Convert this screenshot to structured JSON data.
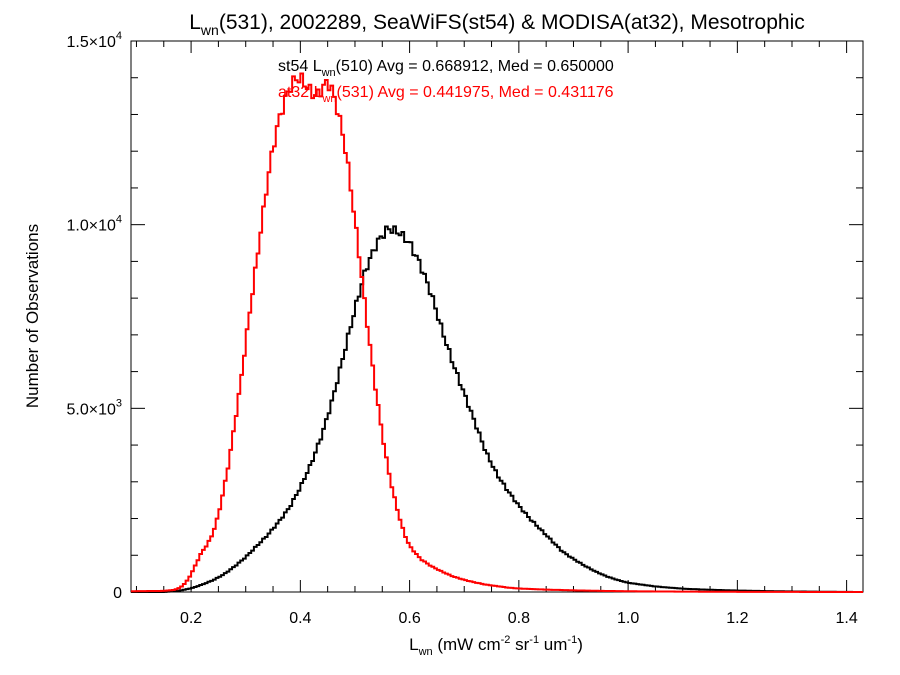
{
  "chart_data": {
    "type": "step-histogram",
    "title": {
      "prefix": "L",
      "sub": "wn",
      "rest": "(531), 2002289, SeaWiFS(st54) & MODISA(at32), Mesotrophic"
    },
    "xlabel": {
      "prefix": "L",
      "sub": "wn",
      "open": " (mW cm",
      "sup1": "-2",
      "mid1": " sr",
      "sup2": "-1",
      "mid2": " um",
      "sup3": "-1",
      "close": ")"
    },
    "ylabel": "Number of Observations",
    "xlim": [
      0.09,
      1.43
    ],
    "ylim": [
      0,
      15000
    ],
    "x_ticks": [
      {
        "value": 0.2,
        "label": "0.2"
      },
      {
        "value": 0.4,
        "label": "0.4"
      },
      {
        "value": 0.6,
        "label": "0.6"
      },
      {
        "value": 0.8,
        "label": "0.8"
      },
      {
        "value": 1.0,
        "label": "1.0"
      },
      {
        "value": 1.2,
        "label": "1.2"
      },
      {
        "value": 1.4,
        "label": "1.4"
      }
    ],
    "x_minor_step": 0.05,
    "y_ticks": [
      {
        "value": 0,
        "mant": "0",
        "exp": ""
      },
      {
        "value": 5000,
        "mant": "5.0×10",
        "exp": "3"
      },
      {
        "value": 10000,
        "mant": "1.0×10",
        "exp": "4"
      },
      {
        "value": 15000,
        "mant": "1.5×10",
        "exp": "4"
      }
    ],
    "y_minor_step": 1000,
    "legend": [
      {
        "sensor": "st54",
        "prefix": "st54 L",
        "sub": "wn",
        "rest": "(510) Avg = 0.668912, Med = 0.650000",
        "color": "#000000"
      },
      {
        "sensor": "at32",
        "prefix": "at32 L",
        "sub": "wn",
        "rest": "(531) Avg = 0.441975, Med = 0.431176",
        "color": "#ff0000"
      }
    ],
    "series": [
      {
        "name": "st54",
        "color": "#000000",
        "x": [
          0.09,
          0.15,
          0.18,
          0.2,
          0.22,
          0.24,
          0.26,
          0.28,
          0.3,
          0.32,
          0.34,
          0.36,
          0.38,
          0.4,
          0.42,
          0.44,
          0.46,
          0.48,
          0.5,
          0.52,
          0.54,
          0.56,
          0.58,
          0.6,
          0.62,
          0.64,
          0.66,
          0.68,
          0.7,
          0.72,
          0.74,
          0.76,
          0.78,
          0.8,
          0.82,
          0.84,
          0.86,
          0.88,
          0.9,
          0.92,
          0.94,
          0.96,
          0.98,
          1.0,
          1.05,
          1.1,
          1.15,
          1.2,
          1.25,
          1.3,
          1.35,
          1.4,
          1.43
        ],
        "y": [
          0,
          0,
          40,
          100,
          200,
          320,
          480,
          700,
          950,
          1250,
          1550,
          1900,
          2300,
          2850,
          3500,
          4300,
          5300,
          6500,
          7700,
          8800,
          9500,
          9900,
          9800,
          9500,
          8900,
          8100,
          7100,
          6200,
          5400,
          4600,
          3800,
          3200,
          2750,
          2350,
          2000,
          1700,
          1400,
          1100,
          900,
          720,
          560,
          430,
          330,
          250,
          150,
          90,
          60,
          40,
          25,
          15,
          8,
          3,
          0
        ]
      },
      {
        "name": "at32",
        "color": "#ff0000",
        "x": [
          0.09,
          0.15,
          0.17,
          0.18,
          0.19,
          0.2,
          0.21,
          0.22,
          0.23,
          0.24,
          0.25,
          0.26,
          0.27,
          0.28,
          0.29,
          0.3,
          0.31,
          0.32,
          0.33,
          0.34,
          0.35,
          0.36,
          0.37,
          0.38,
          0.39,
          0.4,
          0.41,
          0.42,
          0.43,
          0.44,
          0.45,
          0.46,
          0.47,
          0.48,
          0.49,
          0.5,
          0.51,
          0.52,
          0.53,
          0.54,
          0.55,
          0.56,
          0.57,
          0.58,
          0.59,
          0.6,
          0.62,
          0.64,
          0.66,
          0.68,
          0.7,
          0.72,
          0.74,
          0.76,
          0.78,
          0.8,
          0.85,
          0.9,
          0.95,
          1.0,
          1.1,
          1.2,
          1.3,
          1.43
        ],
        "y": [
          20,
          30,
          60,
          120,
          250,
          480,
          800,
          1100,
          1300,
          1600,
          2100,
          2800,
          3600,
          4600,
          5600,
          6800,
          7900,
          9000,
          10100,
          11200,
          12100,
          12800,
          13300,
          13700,
          13950,
          14000,
          13800,
          13600,
          13500,
          13700,
          13900,
          13600,
          13000,
          12300,
          11300,
          10100,
          8900,
          7600,
          6400,
          5300,
          4300,
          3400,
          2700,
          2100,
          1600,
          1250,
          900,
          700,
          550,
          420,
          330,
          260,
          200,
          160,
          120,
          95,
          65,
          45,
          30,
          20,
          10,
          5,
          2,
          0
        ]
      }
    ]
  }
}
